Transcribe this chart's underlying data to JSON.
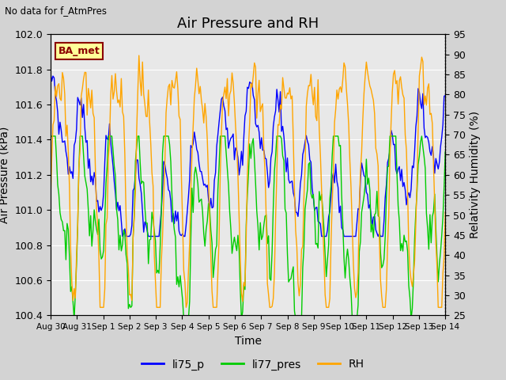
{
  "title": "Air Pressure and RH",
  "top_left_text": "No data for f_AtmPres",
  "annotation_box": "BA_met",
  "xlabel": "Time",
  "ylabel_left": "Air Pressure (kPa)",
  "ylabel_right": "Relativity Humidity (%)",
  "ylim_left": [
    100.4,
    102.0
  ],
  "ylim_right": [
    25,
    95
  ],
  "yticks_left": [
    100.4,
    100.6,
    100.8,
    101.0,
    101.2,
    101.4,
    101.6,
    101.8,
    102.0
  ],
  "yticks_right": [
    25,
    30,
    35,
    40,
    45,
    50,
    55,
    60,
    65,
    70,
    75,
    80,
    85,
    90,
    95
  ],
  "xtick_labels": [
    "Aug 30",
    "Aug 31",
    "Sep 1",
    "Sep 2",
    "Sep 3",
    "Sep 4",
    "Sep 5",
    "Sep 6",
    "Sep 7",
    "Sep 8",
    "Sep 9",
    "Sep 10",
    "Sep 11",
    "Sep 12",
    "Sep 13",
    "Sep 14"
  ],
  "color_li75": "#0000ff",
  "color_li77": "#00cc00",
  "color_rh": "#ffa500",
  "legend_labels": [
    "li75_p",
    "li77_pres",
    "RH"
  ],
  "background_color": "#d3d3d3",
  "plot_bg_color": "#e8e8e8",
  "title_fontsize": 13,
  "axis_label_fontsize": 10,
  "tick_fontsize": 9,
  "n_points": 336
}
